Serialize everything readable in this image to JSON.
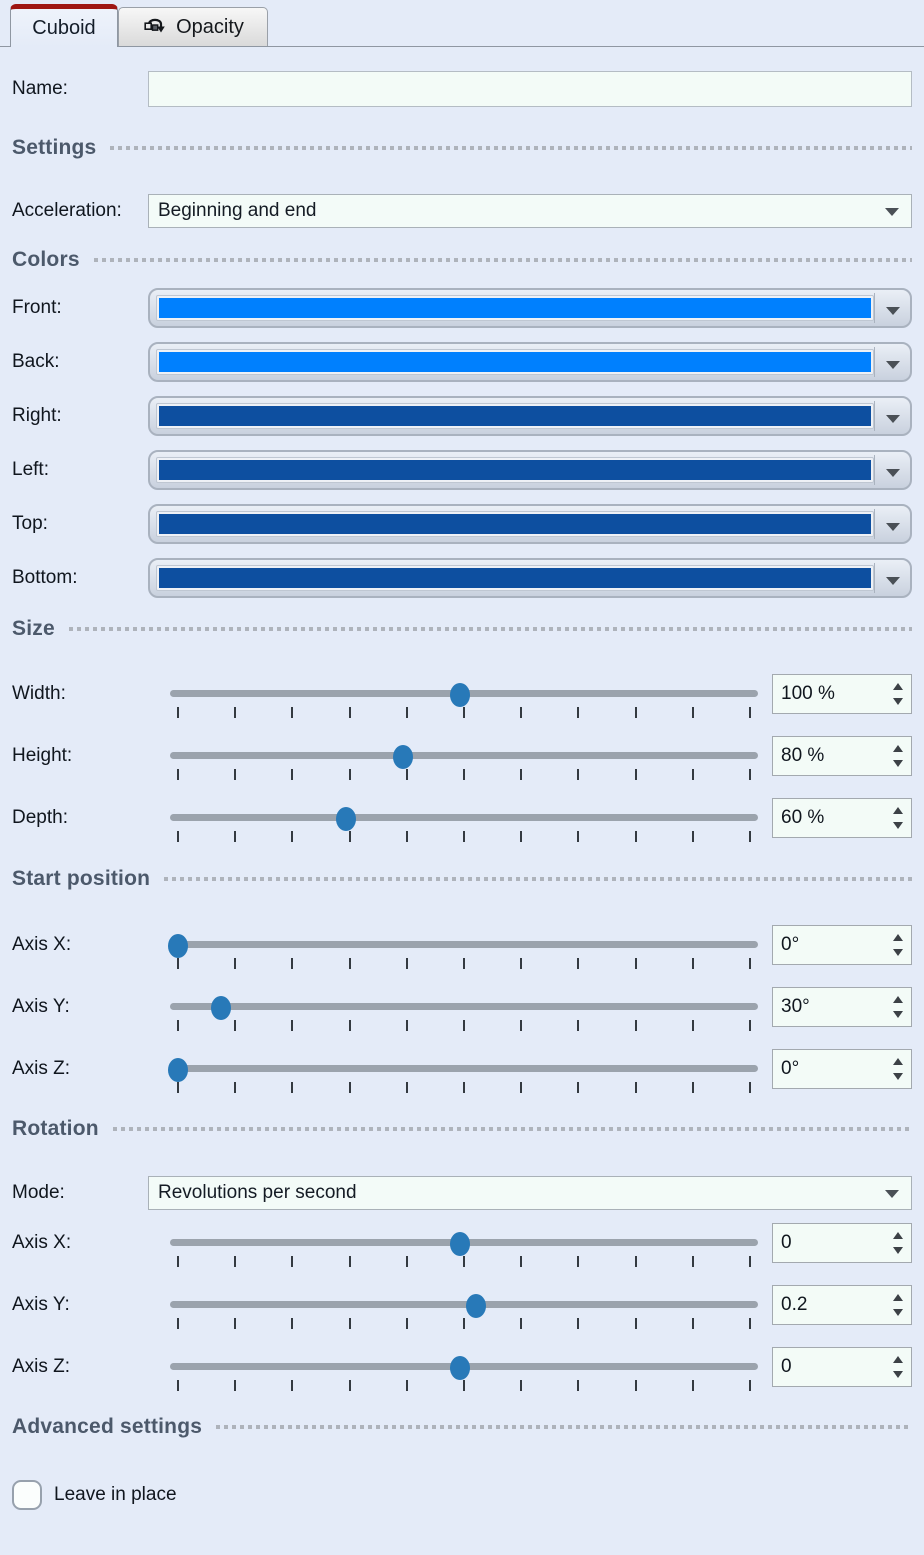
{
  "tabs": {
    "cuboid": {
      "label": "Cuboid",
      "active": true
    },
    "opacity": {
      "label": "Opacity",
      "active": false,
      "icon": "rotation-icon"
    }
  },
  "name_field": {
    "label": "Name:",
    "value": "",
    "placeholder": ""
  },
  "sections": {
    "settings": "Settings",
    "colors": "Colors",
    "size": "Size",
    "start_position": "Start position",
    "rotation": "Rotation",
    "advanced": "Advanced settings"
  },
  "acceleration": {
    "label": "Acceleration:",
    "value": "Beginning and end"
  },
  "colors": {
    "rows": [
      {
        "label": "Front:",
        "color": "#0080fe"
      },
      {
        "label": "Back:",
        "color": "#0080fe"
      },
      {
        "label": "Right:",
        "color": "#0d4fa0"
      },
      {
        "label": "Left:",
        "color": "#0d4fa0"
      },
      {
        "label": "Top:",
        "color": "#0d4fa0"
      },
      {
        "label": "Bottom:",
        "color": "#0d4fa0"
      }
    ]
  },
  "size": {
    "rows": [
      {
        "label": "Width:",
        "value": "100 %",
        "percent": 49.4
      },
      {
        "label": "Height:",
        "value": "80 %",
        "percent": 39.7
      },
      {
        "label": "Depth:",
        "value": "60 %",
        "percent": 29.9
      }
    ]
  },
  "start_position": {
    "rows": [
      {
        "label": "Axis X:",
        "value": "0°",
        "percent": 1.4
      },
      {
        "label": "Axis Y:",
        "value": "30°",
        "percent": 8.7
      },
      {
        "label": "Axis Z:",
        "value": "0°",
        "percent": 1.4
      }
    ]
  },
  "rotation": {
    "mode": {
      "label": "Mode:",
      "value": "Revolutions per second"
    },
    "rows": [
      {
        "label": "Axis X:",
        "value": "0",
        "percent": 49.4
      },
      {
        "label": "Axis Y:",
        "value": "0.2",
        "percent": 52.0
      },
      {
        "label": "Axis Z:",
        "value": "0",
        "percent": 49.4
      }
    ]
  },
  "advanced": {
    "checkbox_label": "Leave in place",
    "checked": false
  },
  "theme": {
    "background": "#e4ebf8",
    "active_tab_accent": "#9e1613",
    "bright_blue": "#0080fe",
    "dark_blue": "#0d4fa0",
    "slider_handle": "#2879b8",
    "slider_track": "#9ba3ad",
    "input_background": "#f3fbf7"
  }
}
